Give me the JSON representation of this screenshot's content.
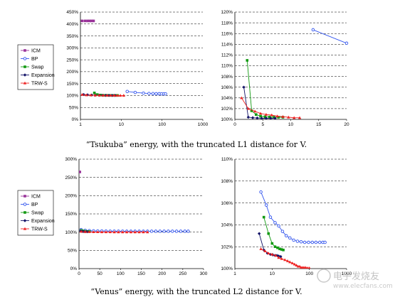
{
  "captions": [
    "“Tsukuba” energy, with the truncated L1 distance for V.",
    "“Venus” energy, with the truncated L2 distance for V."
  ],
  "watermark": {
    "text": "电子发烧友",
    "url": "www.elecfans.com"
  },
  "colors": {
    "ICM": "#993399",
    "BP": "#3355ee",
    "Swap": "#119911",
    "Expansion": "#111166",
    "TRW-S": "#ee2222"
  },
  "chart_data": [
    {
      "id": "tsukuba-left",
      "type": "line",
      "x_scale": "log",
      "xlim": [
        1,
        1000
      ],
      "ylim": [
        0,
        450
      ],
      "x_ticks": [
        1,
        10,
        100,
        1000
      ],
      "x_tick_labels": [
        "1",
        "10",
        "100",
        "1000"
      ],
      "y_ticks": [
        0,
        50,
        100,
        150,
        200,
        250,
        300,
        350,
        400,
        450
      ],
      "y_tick_labels": [
        "0%",
        "50%",
        "100%",
        "150%",
        "200%",
        "250%",
        "300%",
        "350%",
        "400%",
        "450%"
      ],
      "grid": "horizontal dashed",
      "legend": [
        "ICM",
        "BP",
        "Swap",
        "Expansion",
        "TRW-S"
      ],
      "legend_position": "left",
      "series": [
        {
          "name": "ICM",
          "x": [
            1.1,
            1.3,
            1.5,
            1.7,
            1.9,
            2.1
          ],
          "y": [
            413,
            413,
            413,
            413,
            413,
            413
          ]
        },
        {
          "name": "BP",
          "x": [
            14,
            22,
            35,
            48,
            60,
            72,
            85,
            97,
            110,
            122
          ],
          "y": [
            117,
            113,
            110,
            108.5,
            108,
            107.5,
            107.5,
            107,
            107,
            107
          ]
        },
        {
          "name": "Swap",
          "x": [
            2.2,
            2.6,
            3.1,
            3.6,
            4.2,
            4.8,
            5.5,
            6.3,
            7.2,
            8.1
          ],
          "y": [
            111,
            104,
            102,
            101,
            100.8,
            100.6,
            100.5,
            100.4,
            100.4,
            100.4
          ]
        },
        {
          "name": "Expansion",
          "x": [
            1.2,
            1.5,
            1.9,
            2.3,
            2.9,
            3.5,
            4.2,
            5.0,
            6.0,
            7.0
          ],
          "y": [
            104,
            103,
            102,
            101.5,
            101,
            100.8,
            100.6,
            100.5,
            100.5,
            100.4
          ]
        },
        {
          "name": "TRW-S",
          "x": [
            1.1,
            1.4,
            1.8,
            2.3,
            2.9,
            3.6,
            4.5,
            5.5,
            6.7,
            8.0,
            9.5,
            11.5
          ],
          "y": [
            104,
            102,
            101.5,
            101,
            100.8,
            100.6,
            100.5,
            100.4,
            100.3,
            100.3,
            100.2,
            100.2
          ]
        }
      ]
    },
    {
      "id": "tsukuba-right",
      "type": "line",
      "xlim": [
        0,
        20
      ],
      "ylim": [
        100,
        120
      ],
      "x_ticks": [
        0,
        5,
        10,
        15,
        20
      ],
      "x_tick_labels": [
        "0",
        "5",
        "10",
        "15",
        "20"
      ],
      "y_ticks": [
        100,
        102,
        104,
        106,
        108,
        110,
        112,
        114,
        116,
        118,
        120
      ],
      "y_tick_labels": [
        "100%",
        "102%",
        "104%",
        "106%",
        "108%",
        "110%",
        "112%",
        "114%",
        "116%",
        "118%",
        "120%"
      ],
      "grid": "horizontal dashed",
      "series": [
        {
          "name": "BP",
          "x": [
            14,
            20
          ],
          "y": [
            116.7,
            114.2
          ]
        },
        {
          "name": "Swap",
          "x": [
            2.2,
            3.0,
            3.8,
            4.6,
            5.4,
            6.2,
            7.0,
            7.8,
            8.6
          ],
          "y": [
            111,
            101.6,
            100.9,
            100.6,
            100.5,
            100.45,
            100.4,
            100.4,
            100.4
          ]
        },
        {
          "name": "Expansion",
          "x": [
            1.6,
            2.4,
            3.2,
            4.0,
            4.8,
            5.6,
            6.4,
            7.2
          ],
          "y": [
            106,
            100.4,
            100.3,
            100.25,
            100.2,
            100.2,
            100.2,
            100.2
          ]
        },
        {
          "name": "TRW-S",
          "x": [
            1.2,
            2.4,
            3.6,
            4.6,
            5.6,
            6.6,
            7.6,
            8.6,
            9.6,
            10.6,
            11.6
          ],
          "y": [
            104,
            102,
            101.5,
            101.1,
            100.9,
            100.8,
            100.6,
            100.5,
            100.4,
            100.3,
            100.3
          ]
        }
      ]
    },
    {
      "id": "venus-left",
      "type": "line",
      "xlim": [
        0,
        300
      ],
      "ylim": [
        0,
        300
      ],
      "x_ticks": [
        0,
        50,
        100,
        150,
        200,
        250,
        300
      ],
      "x_tick_labels": [
        "0",
        "50",
        "100",
        "150",
        "200",
        "250",
        "300"
      ],
      "y_ticks": [
        0,
        50,
        100,
        150,
        200,
        250,
        300
      ],
      "y_tick_labels": [
        "0%",
        "50%",
        "100%",
        "150%",
        "200%",
        "250%",
        "300%"
      ],
      "grid": "horizontal dashed",
      "legend": [
        "ICM",
        "BP",
        "Swap",
        "Expansion",
        "TRW-S"
      ],
      "legend_position": "left",
      "series": [
        {
          "name": "ICM",
          "x": [
            2
          ],
          "y": [
            265
          ]
        },
        {
          "name": "BP",
          "x": [
            5,
            15,
            25,
            35,
            45,
            55,
            65,
            75,
            85,
            95,
            105,
            115,
            125,
            135,
            145,
            155,
            165,
            175,
            185,
            195,
            205,
            215,
            225,
            235,
            245,
            255,
            263
          ],
          "y": [
            107,
            105,
            104,
            103.5,
            103,
            103,
            102.8,
            102.6,
            102.5,
            102.5,
            102.5,
            102.4,
            102.4,
            102.4,
            102.4,
            102.4,
            102.4,
            102.4,
            102.4,
            102.4,
            102.4,
            102.4,
            102.4,
            102.4,
            102.4,
            102.4,
            102.4
          ]
        },
        {
          "name": "Swap",
          "x": [
            5,
            10,
            15,
            20,
            25
          ],
          "y": [
            104.7,
            103.2,
            102.3,
            101.9,
            101.7
          ]
        },
        {
          "name": "Expansion",
          "x": [
            4,
            8,
            12,
            16,
            20
          ],
          "y": [
            103.2,
            101.6,
            101.3,
            101.2,
            101.1
          ]
        },
        {
          "name": "TRW-S",
          "x": [
            5,
            15,
            25,
            35,
            45,
            55,
            65,
            75,
            85,
            95,
            105,
            115,
            125,
            135,
            145,
            155,
            165
          ],
          "y": [
            101.8,
            101,
            100.7,
            100.5,
            100.4,
            100.3,
            100.2,
            100.2,
            100.1,
            100.1,
            100.1,
            100.1,
            100.1,
            100.1,
            100.1,
            100.1,
            100.1
          ]
        }
      ]
    },
    {
      "id": "venus-right",
      "type": "line",
      "x_scale": "log",
      "xlim": [
        1,
        1000
      ],
      "ylim": [
        100,
        110
      ],
      "x_ticks": [
        1,
        10,
        100,
        1000
      ],
      "x_tick_labels": [
        "1",
        "10",
        "100",
        "1000"
      ],
      "y_ticks": [
        100,
        102,
        104,
        106,
        108,
        110
      ],
      "y_tick_labels": [
        "100%",
        "102%",
        "104%",
        "106%",
        "108%",
        "110%"
      ],
      "grid": "horizontal dashed",
      "series": [
        {
          "name": "BP",
          "x": [
            5,
            7,
            9,
            12,
            15,
            19,
            24,
            30,
            38,
            48,
            60,
            75,
            95,
            120,
            150,
            190,
            230,
            263
          ],
          "y": [
            107,
            105.8,
            104.7,
            104.2,
            103.9,
            103.4,
            103.0,
            102.8,
            102.6,
            102.5,
            102.45,
            102.4,
            102.4,
            102.4,
            102.4,
            102.4,
            102.4,
            102.4
          ]
        },
        {
          "name": "Swap",
          "x": [
            6,
            8,
            10,
            12,
            14,
            16,
            18,
            20
          ],
          "y": [
            104.7,
            103.2,
            102.3,
            102.0,
            101.9,
            101.8,
            101.75,
            101.7
          ]
        },
        {
          "name": "Expansion",
          "x": [
            4.5,
            6,
            7.5,
            9,
            10.5,
            12,
            13.5,
            15,
            17
          ],
          "y": [
            103.2,
            101.7,
            101.4,
            101.3,
            101.25,
            101.2,
            101.2,
            101.15,
            101.1
          ]
        },
        {
          "name": "TRW-S",
          "x": [
            5,
            6.5,
            8,
            10,
            12.5,
            15,
            18,
            22,
            26,
            30,
            35,
            40,
            45,
            50,
            55,
            60,
            66,
            72,
            80,
            90,
            100
          ],
          "y": [
            101.8,
            101.6,
            101.4,
            101.3,
            101.2,
            101.0,
            100.9,
            100.8,
            100.7,
            100.6,
            100.5,
            100.4,
            100.3,
            100.2,
            100.2,
            100.1,
            100.1,
            100.1,
            100.1,
            100.05,
            100.05
          ]
        }
      ]
    }
  ]
}
